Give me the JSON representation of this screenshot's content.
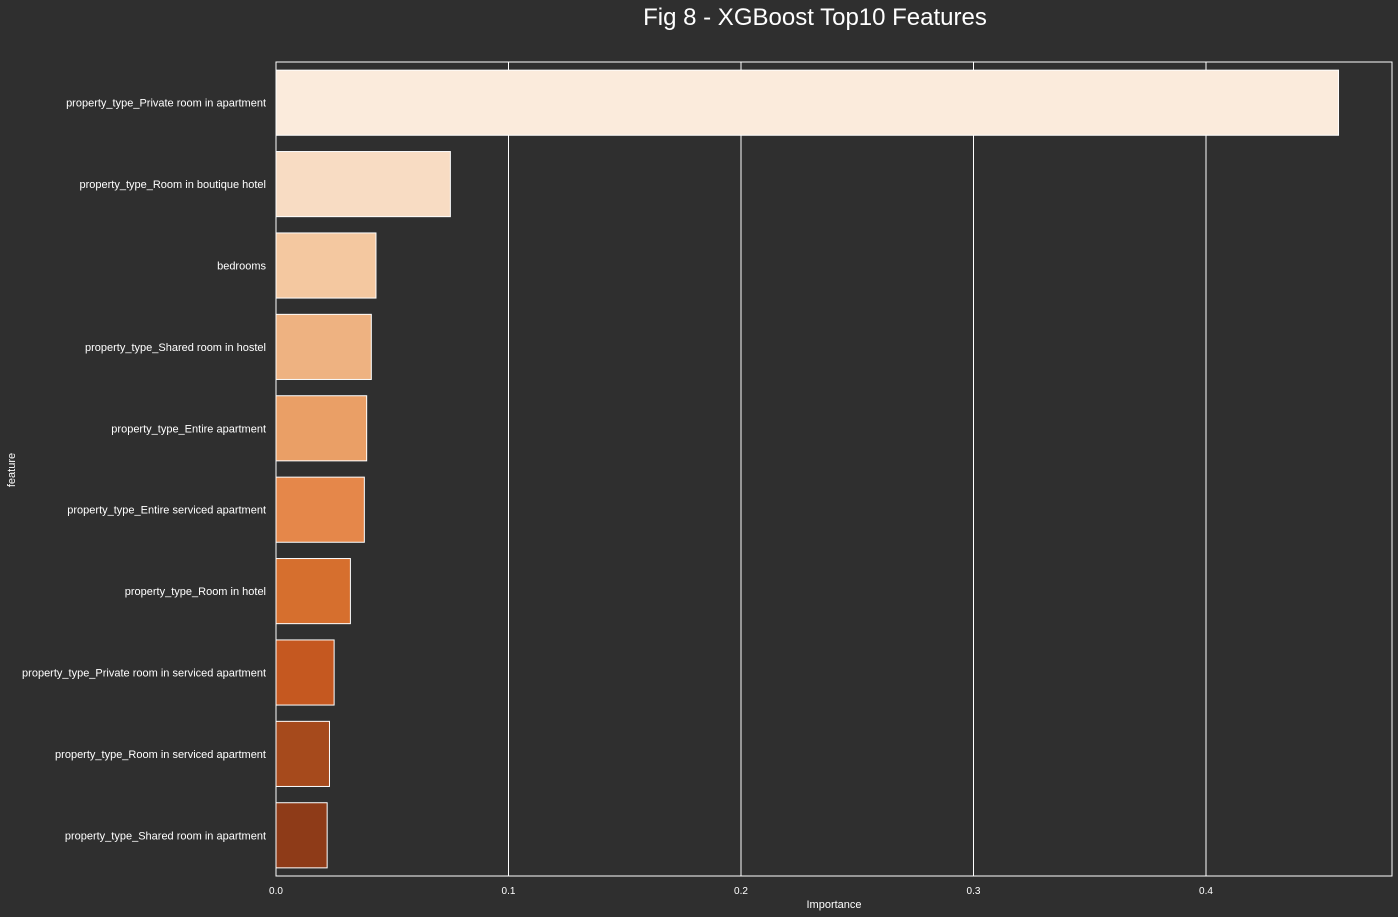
{
  "chart_data": {
    "type": "bar",
    "orientation": "horizontal",
    "title": "Fig 8 - XGBoost Top10 Features",
    "xlabel": "Importance",
    "ylabel": "feature",
    "xlim": [
      0,
      0.48
    ],
    "xticks": [
      0.0,
      0.1,
      0.2,
      0.3,
      0.4
    ],
    "xtick_labels": [
      "0.0",
      "0.1",
      "0.2",
      "0.3",
      "0.4"
    ],
    "grid": "vertical",
    "categories": [
      "property_type_Private room in apartment",
      "property_type_Room in boutique hotel",
      "bedrooms",
      "property_type_Shared room in hostel",
      "property_type_Entire apartment",
      "property_type_Entire serviced apartment",
      "property_type_Room in hotel",
      "property_type_Private room in serviced apartment",
      "property_type_Room in serviced apartment",
      "property_type_Shared room in apartment"
    ],
    "values": [
      0.457,
      0.075,
      0.043,
      0.041,
      0.039,
      0.038,
      0.032,
      0.025,
      0.023,
      0.022
    ],
    "colors": [
      "#fbebdc",
      "#f8dcc3",
      "#f4c8a0",
      "#eeb281",
      "#ea9f66",
      "#e5874a",
      "#d66f2e",
      "#c55820",
      "#a64a1c",
      "#8e3b18"
    ]
  },
  "theme": {
    "background": "#2f2f2f",
    "text_color": "#ffffff",
    "grid_color": "#ffffff",
    "bar_edge_color": "#ffffff"
  }
}
